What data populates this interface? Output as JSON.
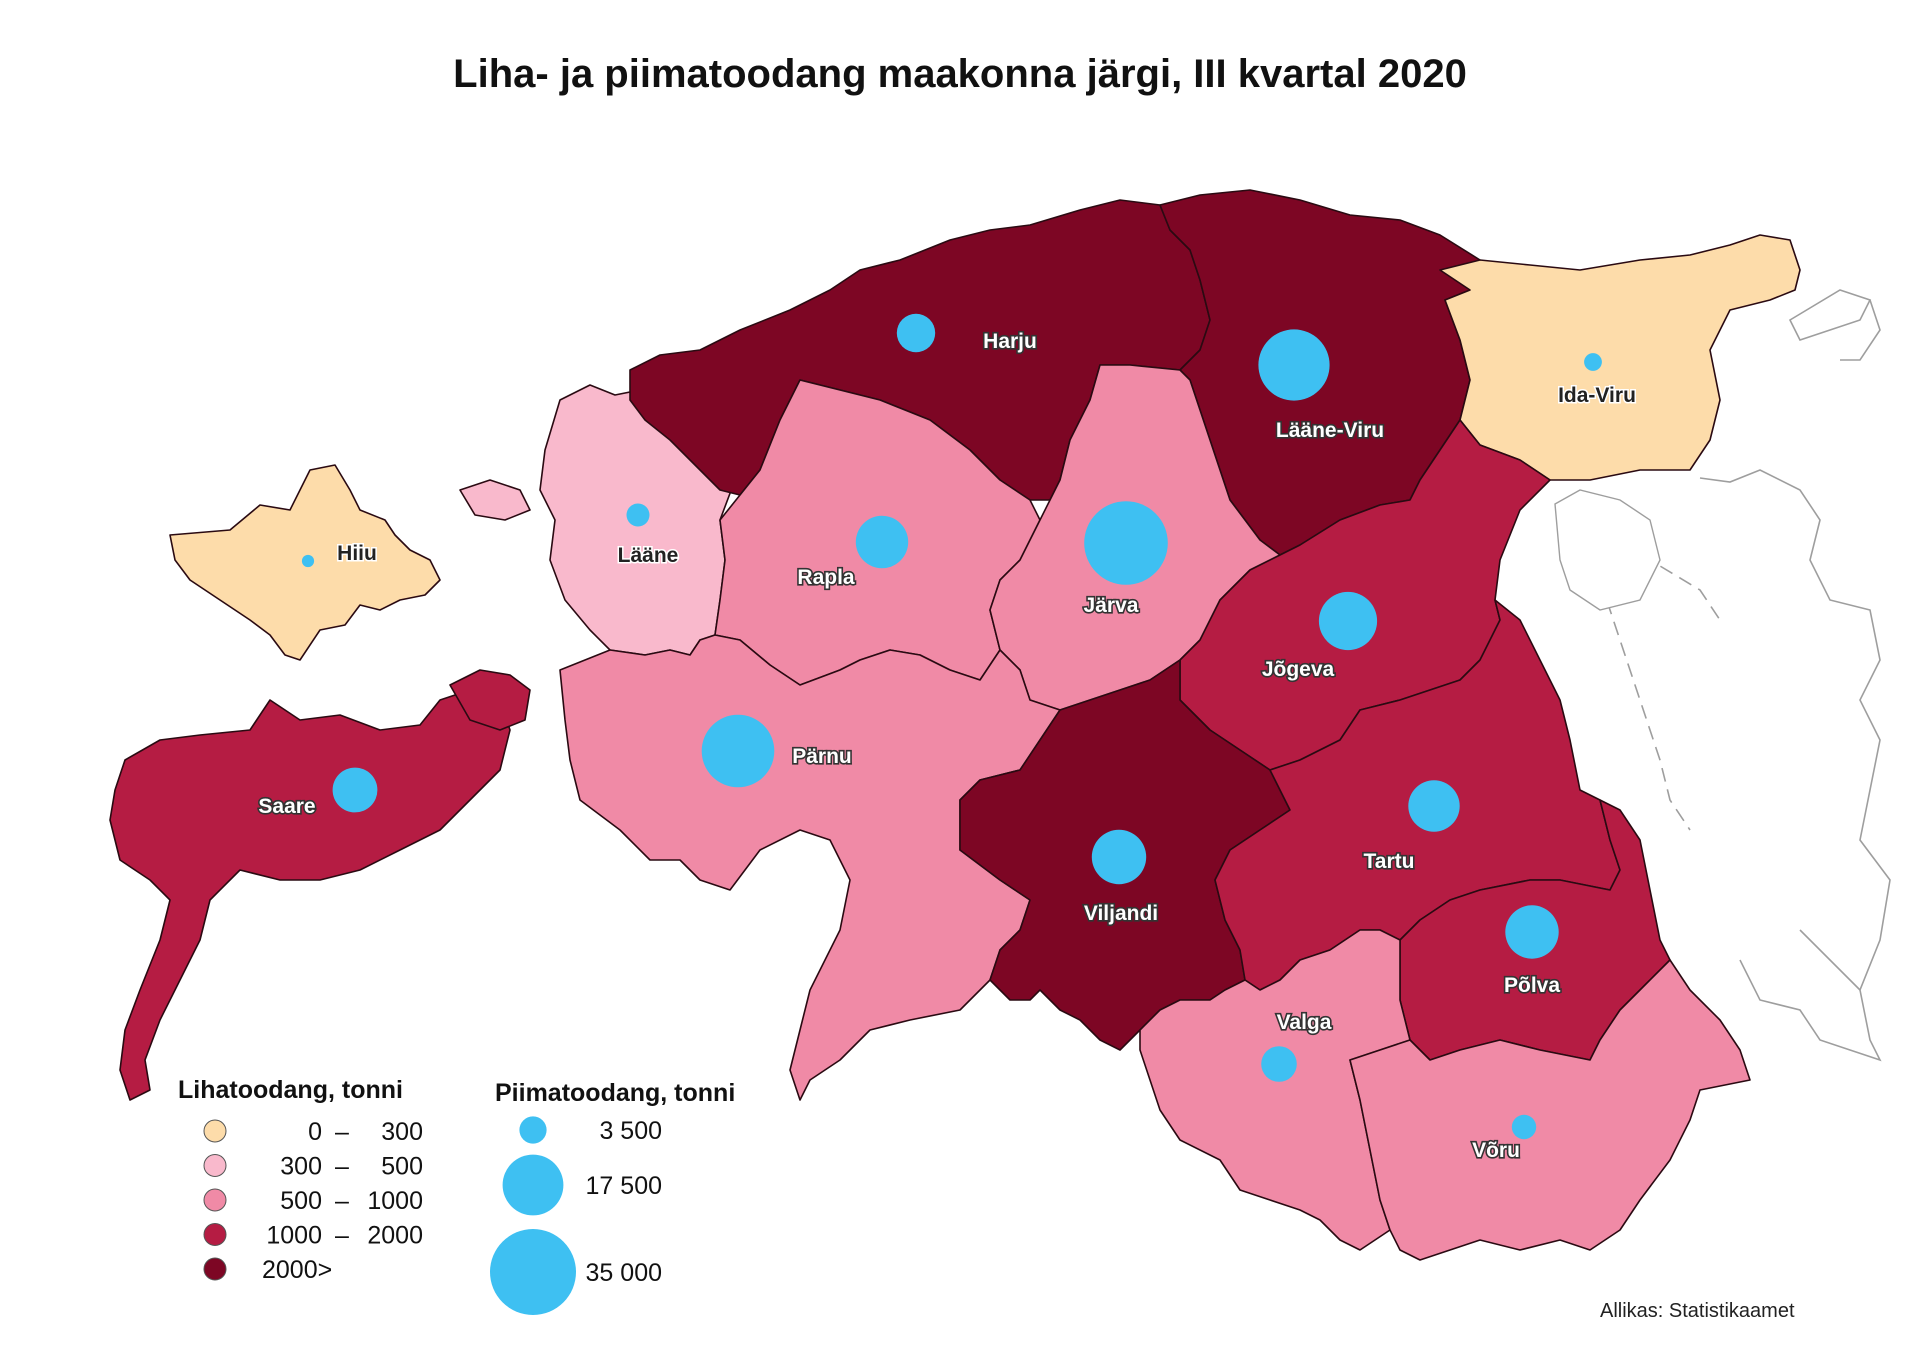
{
  "title": "Liha- ja piimatoodang maakonna järgi, III kvartal 2020",
  "source": "Allikas: Statistikaamet",
  "colors": {
    "class_0_300": "#fddcaa",
    "class_300_500": "#f9b9cc",
    "class_500_1000": "#f08aa6",
    "class_1000_2000": "#b51c43",
    "class_2000_plus": "#7d0624",
    "milk_circle": "#3ec0f2",
    "neighbour_outline": "#9e9e9e"
  },
  "counties": [
    {
      "name": "Harju",
      "meat_class": "2000>",
      "milk_tonnes": 7000
    },
    {
      "name": "Lääne-Viru",
      "meat_class": "2000>",
      "milk_tonnes": 24000
    },
    {
      "name": "Ida-Viru",
      "meat_class": "0 – 300",
      "milk_tonnes": 1500
    },
    {
      "name": "Hiiu",
      "meat_class": "0 – 300",
      "milk_tonnes": 700
    },
    {
      "name": "Lääne",
      "meat_class": "300 – 500",
      "milk_tonnes": 2500
    },
    {
      "name": "Rapla",
      "meat_class": "500 – 1000",
      "milk_tonnes": 13000
    },
    {
      "name": "Järva",
      "meat_class": "500 – 1000",
      "milk_tonnes": 33000
    },
    {
      "name": "Jõgeva",
      "meat_class": "1000 – 2000",
      "milk_tonnes": 16000
    },
    {
      "name": "Saare",
      "meat_class": "1000 – 2000",
      "milk_tonnes": 9500
    },
    {
      "name": "Pärnu",
      "meat_class": "500 – 1000",
      "milk_tonnes": 25000
    },
    {
      "name": "Viljandi",
      "meat_class": "2000>",
      "milk_tonnes": 14000
    },
    {
      "name": "Tartu",
      "meat_class": "1000 – 2000",
      "milk_tonnes": 12500
    },
    {
      "name": "Põlva",
      "meat_class": "1000 – 2000",
      "milk_tonnes": 13500
    },
    {
      "name": "Valga",
      "meat_class": "500 – 1000",
      "milk_tonnes": 6000
    },
    {
      "name": "Võru",
      "meat_class": "500 – 1000",
      "milk_tonnes": 2800
    }
  ],
  "legend_meat": {
    "title": "Lihatoodang, tonni",
    "items": [
      {
        "from": "0",
        "dash": "–",
        "to": "300"
      },
      {
        "from": "300",
        "dash": "–",
        "to": "500"
      },
      {
        "from": "500",
        "dash": "–",
        "to": "1000"
      },
      {
        "from": "1000",
        "dash": "–",
        "to": "2000"
      },
      {
        "from": "2000>",
        "dash": "",
        "to": ""
      }
    ]
  },
  "legend_milk": {
    "title": "Piimatoodang, tonni",
    "items": [
      {
        "label": "3 500",
        "value": 3500
      },
      {
        "label": "17 500",
        "value": 17500
      },
      {
        "label": "35 000",
        "value": 35000
      }
    ]
  }
}
